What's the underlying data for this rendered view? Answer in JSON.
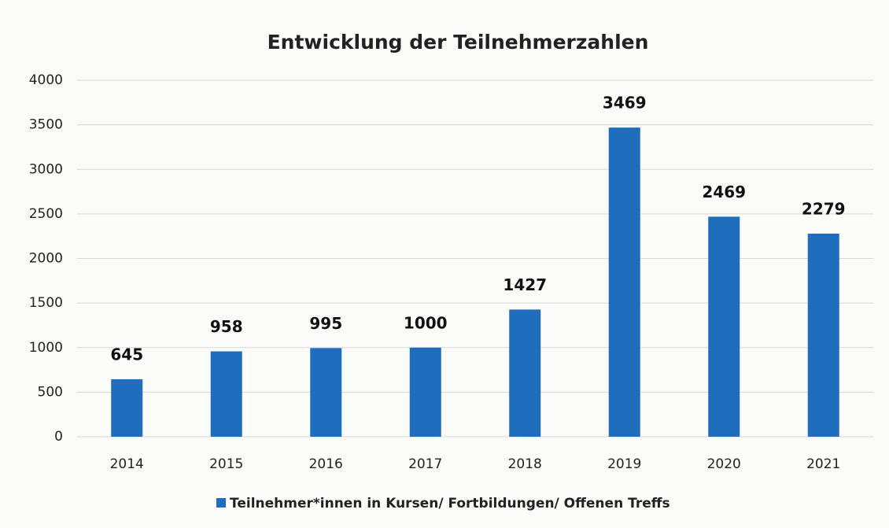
{
  "chart_data": {
    "type": "bar",
    "title": "Entwicklung der Teilnehmerzahlen",
    "categories": [
      "2014",
      "2015",
      "2016",
      "2017",
      "2018",
      "2019",
      "2020",
      "2021"
    ],
    "series": [
      {
        "name": "Teilnehmer*innen in Kursen/ Fortbildungen/ Offenen Treffs",
        "color": "#1f6dbd",
        "values": [
          645,
          958,
          995,
          1000,
          1427,
          3469,
          2469,
          2279
        ]
      }
    ],
    "ylim": [
      0,
      4000
    ],
    "yticks": [
      0,
      500,
      1000,
      1500,
      2000,
      2500,
      3000,
      3500,
      4000
    ],
    "grid": true,
    "legend": "bottom",
    "data_labels": true
  }
}
